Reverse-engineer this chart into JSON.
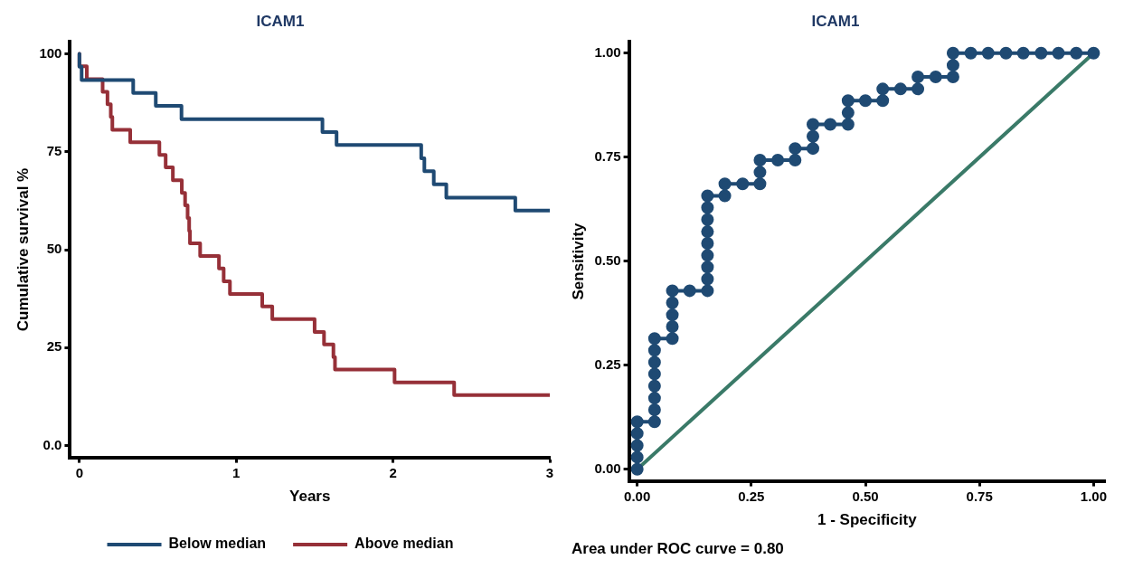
{
  "chart_data": [
    {
      "type": "step",
      "title": "ICAM1",
      "xlabel": "Years",
      "ylabel": "Cumulative survival %",
      "xlim": [
        -0.06,
        3
      ],
      "xticks": [
        0,
        1,
        2,
        3
      ],
      "ylim": [
        -3,
        103
      ],
      "yticks": [
        {
          "value": 0,
          "label": "0.0"
        },
        25,
        50,
        75,
        100
      ],
      "grid": false,
      "legend": "bottom",
      "series": [
        {
          "name": "Below median",
          "color": "#1f4a73",
          "x": [
            0,
            0.014,
            0.343,
            0.487,
            0.651,
            1.55,
            1.64,
            2.18,
            2.2,
            2.26,
            2.34,
            2.78,
            2.86,
            3
          ],
          "values": [
            100,
            96.7,
            93.3,
            90,
            86.7,
            83.3,
            80,
            76.7,
            73.3,
            70,
            66.7,
            63.3,
            60,
            60
          ]
        },
        {
          "name": "Above median",
          "color": "#963038",
          "x": [
            0,
            0.047,
            0.148,
            0.179,
            0.2,
            0.21,
            0.324,
            0.51,
            0.55,
            0.596,
            0.653,
            0.674,
            0.69,
            0.7,
            0.705,
            0.77,
            0.89,
            0.92,
            0.96,
            1.166,
            1.23,
            1.5,
            1.56,
            1.62,
            1.63,
            2.01,
            2.39,
            2.54,
            3
          ],
          "values": [
            100,
            96.8,
            93.5,
            90.3,
            87.1,
            83.9,
            80.6,
            77.4,
            74.2,
            71,
            67.7,
            64.5,
            61.3,
            58.1,
            54.8,
            51.6,
            48.4,
            45.2,
            41.9,
            38.7,
            35.5,
            32.3,
            29,
            25.8,
            22.6,
            19.4,
            16.1,
            12.9,
            12.9
          ]
        }
      ]
    },
    {
      "type": "line",
      "title": "ICAM1",
      "xlabel": "1 - Specificity",
      "ylabel": "Sensitivity",
      "xlim": [
        -0.018,
        1.025
      ],
      "xticks": [
        {
          "value": 0,
          "label": "0.00"
        },
        {
          "value": 0.25,
          "label": "0.25"
        },
        {
          "value": 0.5,
          "label": "0.50"
        },
        {
          "value": 0.75,
          "label": "0.75"
        },
        {
          "value": 1,
          "label": "1.00"
        }
      ],
      "ylim": [
        -0.028,
        1.027
      ],
      "yticks": [
        {
          "value": 0,
          "label": "0.00"
        },
        {
          "value": 0.25,
          "label": "0.25"
        },
        {
          "value": 0.5,
          "label": "0.50"
        },
        {
          "value": 0.75,
          "label": "0.75"
        },
        {
          "value": 1,
          "label": "1.00"
        }
      ],
      "grid": false,
      "legend": false,
      "annotations": [
        "Area under ROC curve = 0.80"
      ],
      "series": [
        {
          "color": "#1f4a73",
          "marker": "circle",
          "x": [
            0,
            0,
            0,
            0,
            0,
            0.038,
            0.038,
            0.038,
            0.038,
            0.038,
            0.038,
            0.038,
            0.038,
            0.077,
            0.077,
            0.077,
            0.077,
            0.077,
            0.115,
            0.154,
            0.154,
            0.154,
            0.154,
            0.154,
            0.154,
            0.154,
            0.154,
            0.154,
            0.192,
            0.192,
            0.231,
            0.269,
            0.269,
            0.269,
            0.308,
            0.346,
            0.346,
            0.385,
            0.385,
            0.385,
            0.423,
            0.462,
            0.462,
            0.462,
            0.5,
            0.538,
            0.538,
            0.577,
            0.615,
            0.615,
            0.654,
            0.692,
            0.692,
            0.692,
            0.731,
            0.769,
            0.808,
            0.846,
            0.885,
            0.923,
            0.962,
            1
          ],
          "values": [
            0,
            0.029,
            0.057,
            0.086,
            0.114,
            0.114,
            0.143,
            0.171,
            0.2,
            0.229,
            0.257,
            0.286,
            0.314,
            0.314,
            0.343,
            0.371,
            0.4,
            0.429,
            0.429,
            0.429,
            0.457,
            0.486,
            0.514,
            0.543,
            0.571,
            0.6,
            0.629,
            0.657,
            0.657,
            0.686,
            0.686,
            0.686,
            0.714,
            0.743,
            0.743,
            0.743,
            0.771,
            0.771,
            0.8,
            0.829,
            0.829,
            0.829,
            0.857,
            0.886,
            0.886,
            0.886,
            0.914,
            0.914,
            0.914,
            0.943,
            0.943,
            0.943,
            0.971,
            1,
            1,
            1,
            1,
            1,
            1,
            1,
            1,
            1
          ]
        },
        {
          "color": "#3a7a68",
          "marker": "none",
          "x": [
            0,
            1
          ],
          "values": [
            0,
            1
          ]
        }
      ]
    }
  ]
}
